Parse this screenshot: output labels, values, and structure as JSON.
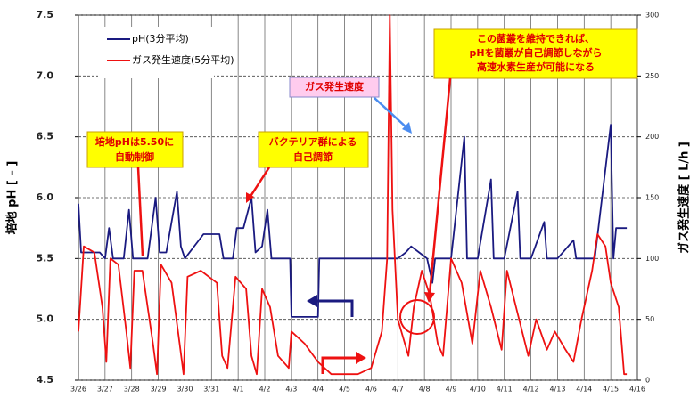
{
  "chart_data": {
    "type": "line",
    "y_label": "培地 pH [ – ]",
    "y2_label": "ガス発生速度 [ L/h ]",
    "xlim": [
      0,
      21
    ],
    "xticks": [
      {
        "value": 0,
        "label": "3/26"
      },
      {
        "value": 1,
        "label": "3/27"
      },
      {
        "value": 2,
        "label": "3/28"
      },
      {
        "value": 3,
        "label": "3/29"
      },
      {
        "value": 4,
        "label": "3/30"
      },
      {
        "value": 5,
        "label": "3/31"
      },
      {
        "value": 6,
        "label": "4/1"
      },
      {
        "value": 7,
        "label": "4/2"
      },
      {
        "value": 8,
        "label": "4/3"
      },
      {
        "value": 9,
        "label": "4/4"
      },
      {
        "value": 10,
        "label": "4/5"
      },
      {
        "value": 11,
        "label": "4/6"
      },
      {
        "value": 12,
        "label": "4/7"
      },
      {
        "value": 13,
        "label": "4/8"
      },
      {
        "value": 14,
        "label": "4/9"
      },
      {
        "value": 15,
        "label": "4/10"
      },
      {
        "value": 16,
        "label": "4/11"
      },
      {
        "value": 17,
        "label": "4/12"
      },
      {
        "value": 18,
        "label": "4/13"
      },
      {
        "value": 19,
        "label": "4/14"
      },
      {
        "value": 20,
        "label": "4/15"
      },
      {
        "value": 21,
        "label": "4/16"
      }
    ],
    "ylim": [
      4.5,
      7.5
    ],
    "yticks": [
      4.5,
      {
        "value": 5,
        "label": "5.0"
      },
      5.5,
      {
        "value": 6,
        "label": "6.0"
      },
      6.5,
      {
        "value": 7,
        "label": "7.0"
      },
      7.5
    ],
    "y2lim": [
      0,
      300
    ],
    "y2ticks": [
      0,
      50,
      100,
      150,
      200,
      250,
      300
    ],
    "grid": true,
    "legend": "upper left",
    "series": [
      {
        "name": "pH(3分平均)",
        "color": "#1a1a80",
        "x": [
          0,
          0.1,
          0.8,
          1.0,
          1.15,
          1.3,
          1.7,
          1.9,
          2.05,
          2.6,
          2.9,
          3.05,
          3.3,
          3.7,
          3.85,
          4.0,
          4.7,
          5.3,
          5.45,
          5.8,
          5.95,
          6.2,
          6.5,
          6.65,
          6.9,
          7.1,
          7.25,
          7.95,
          8.0,
          9.0,
          9.05,
          12.0,
          12.3,
          12.5,
          12.8,
          13.1,
          13.3,
          13.4,
          14.0,
          14.5,
          14.6,
          15.0,
          15.5,
          15.6,
          16.0,
          16.5,
          16.6,
          17.0,
          17.5,
          17.6,
          18.0,
          18.6,
          18.7,
          19.4,
          20.0,
          20.1,
          20.2,
          20.6
        ],
        "values": [
          5.95,
          5.55,
          5.55,
          5.5,
          5.75,
          5.5,
          5.5,
          5.9,
          5.5,
          5.5,
          6.0,
          5.55,
          5.55,
          6.05,
          5.6,
          5.5,
          5.7,
          5.7,
          5.5,
          5.5,
          5.75,
          5.75,
          6.0,
          5.55,
          5.6,
          5.9,
          5.5,
          5.5,
          5.02,
          5.02,
          5.5,
          5.5,
          5.55,
          5.6,
          5.55,
          5.5,
          5.3,
          5.5,
          5.5,
          6.5,
          5.5,
          5.5,
          6.15,
          5.5,
          5.5,
          6.05,
          5.5,
          5.5,
          5.8,
          5.5,
          5.5,
          5.65,
          5.5,
          5.5,
          6.6,
          5.5,
          5.75,
          5.75
        ]
      },
      {
        "name": "ガス発生速度(5分平均)",
        "color": "#ee1111",
        "axis": "y2",
        "x": [
          0,
          0.2,
          0.6,
          0.9,
          1.05,
          1.2,
          1.5,
          1.8,
          1.95,
          2.1,
          2.4,
          2.8,
          2.95,
          3.1,
          3.5,
          3.8,
          3.95,
          4.1,
          4.6,
          5.2,
          5.4,
          5.6,
          5.9,
          6.3,
          6.5,
          6.7,
          6.9,
          7.2,
          7.5,
          7.9,
          8.0,
          8.5,
          9.0,
          9.5,
          10.5,
          11.0,
          11.4,
          11.6,
          11.7,
          11.8,
          12.0,
          12.4,
          12.6,
          12.9,
          13.2,
          13.5,
          13.7,
          14.0,
          14.4,
          14.8,
          15.1,
          15.5,
          15.9,
          16.1,
          16.5,
          16.9,
          17.2,
          17.6,
          17.9,
          18.3,
          18.6,
          18.9,
          19.3,
          19.5,
          19.8,
          20.0,
          20.3,
          20.5,
          20.6
        ],
        "values": [
          40,
          110,
          105,
          60,
          15,
          100,
          95,
          40,
          10,
          90,
          90,
          30,
          5,
          95,
          80,
          30,
          5,
          85,
          90,
          80,
          20,
          10,
          85,
          75,
          20,
          5,
          75,
          60,
          20,
          10,
          40,
          30,
          15,
          5,
          5,
          10,
          40,
          100,
          300,
          140,
          50,
          20,
          60,
          90,
          70,
          30,
          20,
          100,
          80,
          30,
          90,
          60,
          25,
          90,
          55,
          20,
          50,
          25,
          40,
          25,
          15,
          50,
          90,
          120,
          110,
          80,
          60,
          5,
          5
        ]
      }
    ],
    "annotations": [
      {
        "lines": [
          "培地pHは5.50に",
          "自動制御"
        ]
      },
      {
        "lines": [
          "バクテリア群による",
          "自己調節"
        ]
      },
      {
        "lines": [
          "ガス発生速度"
        ]
      },
      {
        "lines": [
          "この菌叢を維持できれば、",
          "pHを菌叢が自己調節しながら",
          "高速水素生産が可能になる"
        ]
      }
    ]
  }
}
